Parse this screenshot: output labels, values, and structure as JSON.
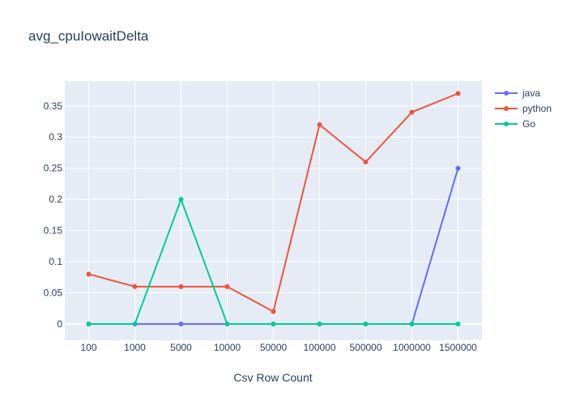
{
  "chart_data": {
    "type": "line",
    "title": "avg_cpuIowaitDelta",
    "xlabel": "Csv Row Count",
    "ylabel": "",
    "categories": [
      "100",
      "1000",
      "5000",
      "10000",
      "50000",
      "100000",
      "500000",
      "1000000",
      "1500000"
    ],
    "ylim": [
      -0.026,
      0.39
    ],
    "yticks": [
      0,
      0.05,
      0.1,
      0.15,
      0.2,
      0.25,
      0.3,
      0.35
    ],
    "ytick_labels": [
      "0",
      "0.05",
      "0.1",
      "0.15",
      "0.2",
      "0.25",
      "0.3",
      "0.35"
    ],
    "grid": true,
    "legend_position": "top-right",
    "series": [
      {
        "name": "java",
        "color": "#636efa",
        "values": [
          0,
          0,
          0,
          0,
          0,
          0,
          0,
          0,
          0.25
        ]
      },
      {
        "name": "python",
        "color": "#ef553b",
        "values": [
          0.08,
          0.06,
          0.06,
          0.06,
          0.02,
          0.32,
          0.26,
          0.34,
          0.37
        ]
      },
      {
        "name": "Go",
        "color": "#00cc96",
        "values": [
          0,
          0,
          0.2,
          0,
          0,
          0,
          0,
          0,
          0
        ]
      }
    ]
  }
}
